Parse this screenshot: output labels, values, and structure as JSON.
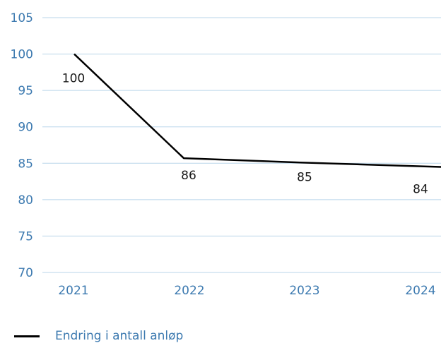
{
  "chart_data": {
    "type": "line",
    "categories": [
      "2021",
      "2022",
      "2023",
      "2024"
    ],
    "series": [
      {
        "name": "Endring i antall anløp",
        "values": [
          100,
          85.7,
          85.1,
          84.5
        ],
        "data_labels": [
          "100",
          "86",
          "85",
          "84"
        ],
        "color": "#000000"
      }
    ],
    "ylim": [
      70,
      105
    ],
    "yticks": [
      105,
      100,
      95,
      90,
      85,
      80,
      75,
      70
    ],
    "grid": true,
    "legend": "bottom-left",
    "colors": {
      "axis_text": "#3d7ab0",
      "grid": "#b9d5ea",
      "line": "#000000"
    }
  }
}
